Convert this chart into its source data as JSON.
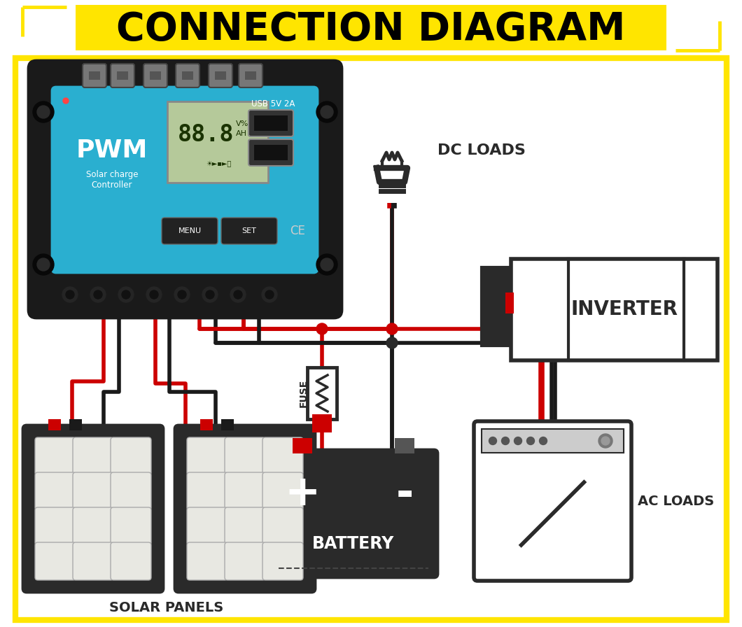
{
  "title": "CONNECTION DIAGRAM",
  "title_bg": "#FFE500",
  "title_color": "#000000",
  "bg_color": "#FFFFFF",
  "border_color": "#FFE500",
  "wire_red": "#CC0000",
  "wire_black": "#1A1A1A",
  "comp_color": "#2A2A2A",
  "ctrl_blue": "#2AAFD0",
  "ctrl_black": "#1A1A1A",
  "lcd_color": "#B5C99A",
  "inverter_label": "INVERTER",
  "battery_label": "BATTERY",
  "solar_label": "SOLAR PANELS",
  "dc_label": "DC LOADS",
  "ac_label": "AC LOADS",
  "fuse_label": "FUSE",
  "pwm_label": "PWM",
  "sc_label1": "Solar charge",
  "sc_label2": "Controller",
  "usb_label": "USB 5V 2A",
  "menu_label": "MENU",
  "set_label": "SET",
  "ce_label": "CE",
  "plus_label": "+",
  "minus_label": "-"
}
